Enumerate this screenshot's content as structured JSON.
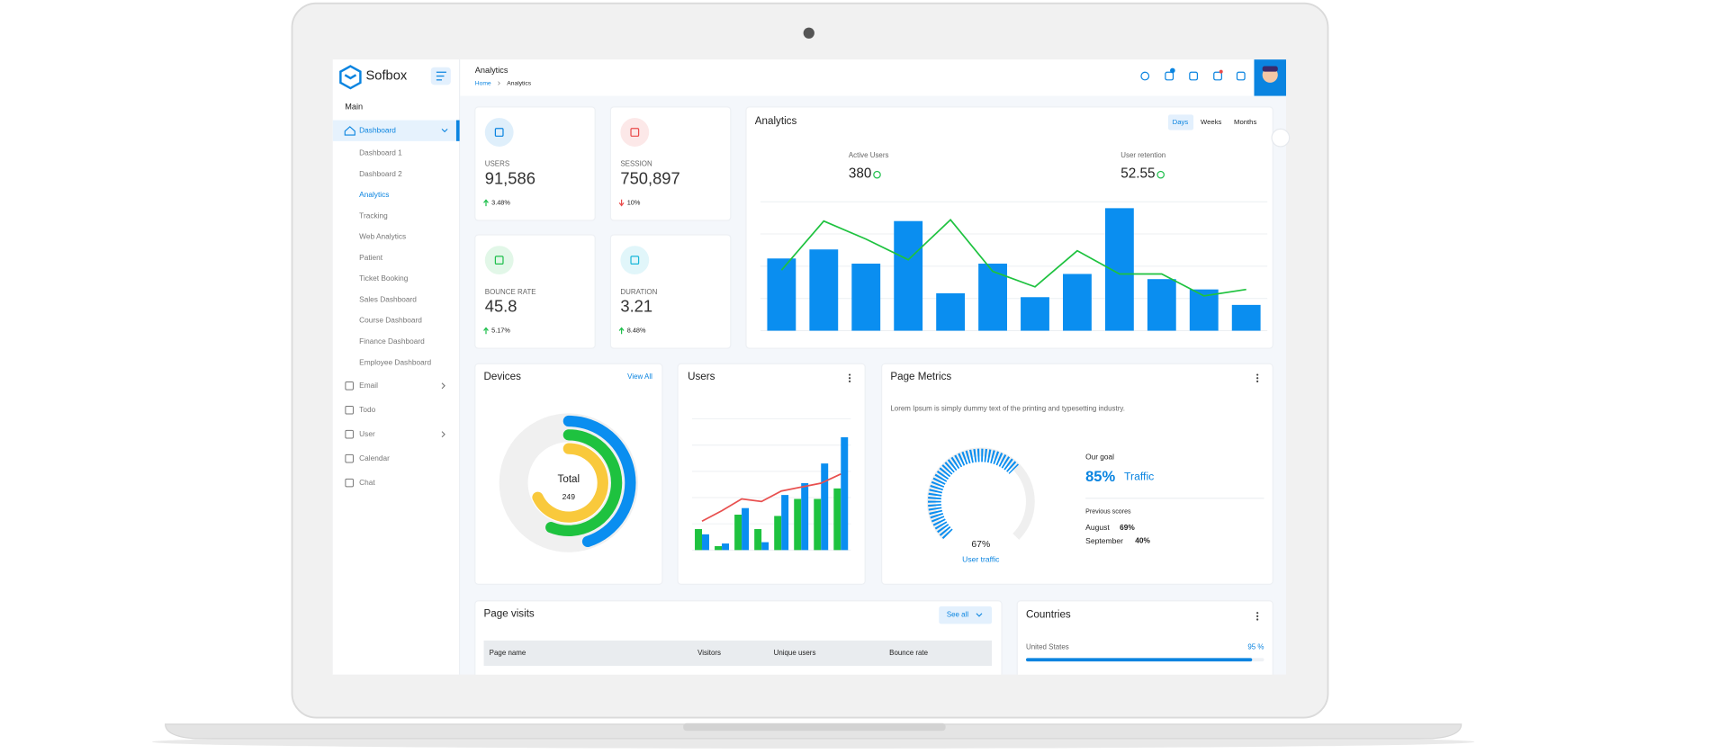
{
  "brand": "Sofbox",
  "header": {
    "title": "Analytics",
    "breadcrumb": [
      "Home",
      "Analytics"
    ]
  },
  "sidebar": {
    "section": "Main",
    "dashboard": "Dashboard",
    "submenu": [
      "Dashboard 1",
      "Dashboard 2",
      "Analytics",
      "Tracking",
      "Web Analytics",
      "Patient",
      "Ticket Booking",
      "Sales Dashboard",
      "Course Dashboard",
      "Finance Dashboard",
      "Employee Dashboard"
    ],
    "items": [
      "Email",
      "Todo",
      "User",
      "Calendar",
      "Chat"
    ]
  },
  "stats": [
    {
      "label": "USERS",
      "value": "91,586",
      "change": "3.48%",
      "trend": "up",
      "color": "#0a84e0"
    },
    {
      "label": "SESSION",
      "value": "750,897",
      "change": "10%",
      "trend": "down",
      "color": "#e94b4b"
    },
    {
      "label": "BOUNCE RATE",
      "value": "45.8",
      "change": "5.17%",
      "trend": "up",
      "color": "#1fbf4c"
    },
    {
      "label": "DURATION",
      "value": "3.21",
      "change": "8.48%",
      "trend": "up",
      "color": "#19b7d9"
    }
  ],
  "analytics": {
    "title": "Analytics",
    "periods": [
      "Days",
      "Weeks",
      "Months"
    ],
    "kpis": [
      {
        "label": "Active Users",
        "value": "380"
      },
      {
        "label": "User retention",
        "value": "52.55"
      }
    ],
    "chart": {
      "type": "bar",
      "ylim": [
        0,
        100
      ],
      "yticks": [
        0,
        25,
        50,
        75,
        100
      ],
      "grid": true,
      "series": [
        {
          "type": "bar",
          "color": "#0a8ef0",
          "values": [
            56,
            63,
            52,
            85,
            29,
            52,
            26,
            44,
            95,
            40,
            32,
            20
          ]
        },
        {
          "type": "line",
          "color": "#1ec23f",
          "values": [
            47,
            85,
            71,
            55,
            86,
            46,
            34,
            62,
            44,
            44,
            27,
            32
          ]
        }
      ]
    }
  },
  "devices": {
    "title": "Devices",
    "link": "View All",
    "center_label": "Total",
    "total": 249,
    "chart": {
      "type": "radial",
      "ylim": [
        0,
        100
      ],
      "series": [
        {
          "color": "#0a8ef0",
          "values": [
            45
          ]
        },
        {
          "color": "#1ec23f",
          "values": [
            56
          ]
        },
        {
          "color": "#f9c93c",
          "values": [
            68
          ]
        }
      ]
    }
  },
  "users": {
    "title": "Users",
    "chart": {
      "type": "bar",
      "ylim": [
        0,
        100
      ],
      "yticks": [
        0,
        20,
        40,
        60,
        80,
        100
      ],
      "grid": true,
      "series": [
        {
          "type": "bar",
          "color": "#1ec23f",
          "values": [
            16,
            3,
            27,
            16,
            26,
            39,
            39,
            47
          ]
        },
        {
          "type": "bar",
          "color": "#0a8ef0",
          "values": [
            12,
            5,
            32,
            6,
            42,
            51,
            66,
            86
          ]
        },
        {
          "type": "line",
          "color": "#e8504f",
          "values": [
            22,
            30,
            39,
            37,
            45,
            48,
            51,
            58
          ]
        }
      ]
    }
  },
  "page_metrics": {
    "title": "Page Metrics",
    "description": "Lorem Ipsum is simply dummy text of the printing and typesetting industry.",
    "gauge": {
      "type": "gauge",
      "ylim": [
        0,
        100
      ],
      "value": 67,
      "label": "67%",
      "caption": "User traffic",
      "color": "#0a8ef0"
    },
    "goal": {
      "heading": "Our goal",
      "value": "85%",
      "label": "Traffic"
    },
    "previous": {
      "heading": "Previous scores",
      "rows": [
        {
          "month": "August",
          "score": "69%",
          "color": "#1ec23f"
        },
        {
          "month": "September",
          "score": "40%",
          "color": "#e94b4b"
        }
      ]
    }
  },
  "page_visits": {
    "title": "Page visits",
    "button": "See all",
    "columns": [
      "Page name",
      "Visitors",
      "Unique users",
      "Bounce rate"
    ]
  },
  "countries": {
    "title": "Countries",
    "rows": [
      {
        "name": "United States",
        "value": 95,
        "label": "95 %",
        "xlim": [
          0,
          100
        ],
        "color": "#0a84e0"
      }
    ]
  }
}
